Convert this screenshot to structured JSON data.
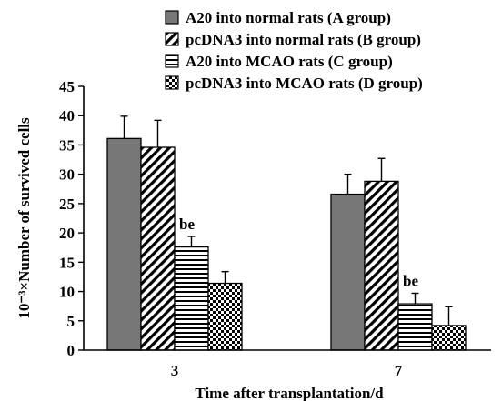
{
  "chart_data": {
    "type": "bar",
    "xlabel": "Time after transplantation/d",
    "ylabel": "10⁻³×Number of survived cells",
    "ylim": [
      0,
      45
    ],
    "yticks": [
      0,
      5,
      10,
      15,
      20,
      25,
      30,
      35,
      40,
      45
    ],
    "categories": [
      "3",
      "7"
    ],
    "legend_position": "top-right",
    "series": [
      {
        "name": "A20 into normal rats (A group)",
        "values": [
          36.1,
          26.6
        ],
        "errors": [
          3.8,
          3.4
        ],
        "pattern": "solid-gray"
      },
      {
        "name": "pcDNA3 into normal rats (B group)",
        "values": [
          34.6,
          28.8
        ],
        "errors": [
          4.6,
          3.9
        ],
        "pattern": "diagonal-stripes"
      },
      {
        "name": "A20 into MCAO rats (C group)",
        "values": [
          17.6,
          7.9
        ],
        "errors": [
          1.8,
          1.8
        ],
        "pattern": "horizontal-stripes"
      },
      {
        "name": "pcDNA3 into MCAO rats (D group)",
        "values": [
          11.4,
          4.2
        ],
        "errors": [
          2.0,
          3.2
        ],
        "pattern": "checkerboard"
      }
    ],
    "annotations": [
      {
        "text": "be",
        "category": "3",
        "series_index": 2
      },
      {
        "text": "be",
        "category": "7",
        "series_index": 2
      }
    ]
  }
}
